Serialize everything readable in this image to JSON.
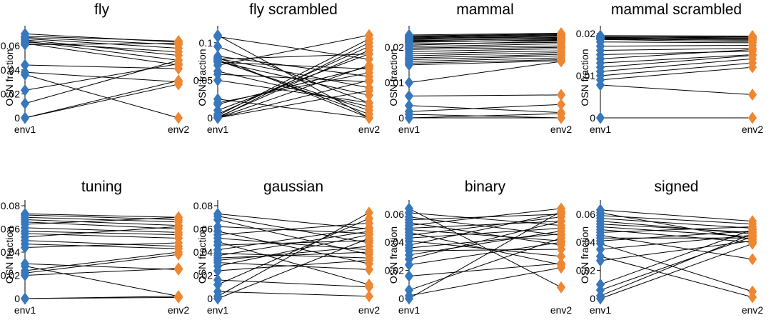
{
  "colors": {
    "env1": "#3677BD",
    "env2": "#EE8732",
    "line": "#000000",
    "axis": "#000000"
  },
  "chart_data": [
    {
      "type": "line",
      "title": "fly",
      "ylabel": "OSN fraction",
      "categories": [
        "env1",
        "env2"
      ],
      "ylim": [
        0,
        0.072
      ],
      "yticks": [
        0,
        0.02,
        0.04,
        0.06
      ],
      "ytick_labels": [
        "0",
        "0.02",
        "0.04",
        "0.06"
      ],
      "series": [
        {
          "values": [
            0.07,
            0.063
          ]
        },
        {
          "values": [
            0.068,
            0.064
          ]
        },
        {
          "values": [
            0.067,
            0.061
          ]
        },
        {
          "values": [
            0.066,
            0.058
          ]
        },
        {
          "values": [
            0.065,
            0.052
          ]
        },
        {
          "values": [
            0.064,
            0.048
          ]
        },
        {
          "values": [
            0.063,
            0.055
          ]
        },
        {
          "values": [
            0.062,
            0.044
          ]
        },
        {
          "values": [
            0.061,
            0.062
          ]
        },
        {
          "values": [
            0.044,
            0.041
          ]
        },
        {
          "values": [
            0.038,
            0.03
          ]
        },
        {
          "values": [
            0.036,
            0.0
          ]
        },
        {
          "values": [
            0.023,
            0.045
          ]
        },
        {
          "values": [
            0.012,
            0.048
          ]
        },
        {
          "values": [
            0.0,
            0.028
          ]
        },
        {
          "values": [
            0.0,
            0.031
          ]
        }
      ]
    },
    {
      "type": "line",
      "title": "fly scrambled",
      "ylabel": "OSN fraction",
      "categories": [
        "env1",
        "env2"
      ],
      "ylim": [
        0,
        0.115
      ],
      "yticks": [
        0,
        0.05,
        0.1
      ],
      "ytick_labels": [
        "0",
        "0.05",
        "0.1"
      ],
      "series": [
        {
          "values": [
            0.11,
            0.0
          ]
        },
        {
          "values": [
            0.108,
            0.078
          ]
        },
        {
          "values": [
            0.095,
            0.02
          ]
        },
        {
          "values": [
            0.082,
            0.055
          ]
        },
        {
          "values": [
            0.08,
            0.0
          ]
        },
        {
          "values": [
            0.079,
            0.04
          ]
        },
        {
          "values": [
            0.078,
            0.085
          ]
        },
        {
          "values": [
            0.077,
            0.005
          ]
        },
        {
          "values": [
            0.076,
            0.01
          ]
        },
        {
          "values": [
            0.075,
            0.03
          ]
        },
        {
          "values": [
            0.074,
            0.065
          ]
        },
        {
          "values": [
            0.07,
            0.11
          ]
        },
        {
          "values": [
            0.062,
            0.015
          ]
        },
        {
          "values": [
            0.058,
            0.048
          ]
        },
        {
          "values": [
            0.05,
            0.02
          ]
        },
        {
          "values": [
            0.025,
            0.0
          ]
        },
        {
          "values": [
            0.02,
            0.06
          ]
        },
        {
          "values": [
            0.018,
            0.068
          ]
        },
        {
          "values": [
            0.01,
            0.085
          ]
        },
        {
          "values": [
            0.005,
            0.095
          ]
        },
        {
          "values": [
            0.003,
            0.105
          ]
        },
        {
          "values": [
            0.001,
            0.09
          ]
        },
        {
          "values": [
            0.0,
            0.1
          ]
        },
        {
          "values": [
            0.0,
            0.07
          ]
        },
        {
          "values": [
            0.0,
            0.05
          ]
        },
        {
          "values": [
            0.0,
            0.036
          ]
        }
      ]
    },
    {
      "type": "line",
      "title": "mammal",
      "ylabel": "OSN fraction",
      "categories": [
        "env1",
        "env2"
      ],
      "ylim": [
        0,
        0.0245
      ],
      "yticks": [
        0,
        0.01,
        0.02
      ],
      "ytick_labels": [
        "0",
        "0.01",
        "0.02"
      ],
      "series": [
        {
          "values": [
            0.0235,
            0.024
          ]
        },
        {
          "values": [
            0.0232,
            0.0238
          ]
        },
        {
          "values": [
            0.023,
            0.0236
          ]
        },
        {
          "values": [
            0.0228,
            0.0234
          ]
        },
        {
          "values": [
            0.0226,
            0.0231
          ]
        },
        {
          "values": [
            0.0224,
            0.0228
          ]
        },
        {
          "values": [
            0.0222,
            0.0232
          ]
        },
        {
          "values": [
            0.022,
            0.0224
          ]
        },
        {
          "values": [
            0.0218,
            0.0226
          ]
        },
        {
          "values": [
            0.0216,
            0.022
          ]
        },
        {
          "values": [
            0.0214,
            0.0222
          ]
        },
        {
          "values": [
            0.021,
            0.0214
          ]
        },
        {
          "values": [
            0.0206,
            0.0218
          ]
        },
        {
          "values": [
            0.0202,
            0.021
          ]
        },
        {
          "values": [
            0.0198,
            0.0204
          ]
        },
        {
          "values": [
            0.0194,
            0.02
          ]
        },
        {
          "values": [
            0.0188,
            0.0196
          ]
        },
        {
          "values": [
            0.0182,
            0.019
          ]
        },
        {
          "values": [
            0.0176,
            0.0185
          ]
        },
        {
          "values": [
            0.017,
            0.018
          ]
        },
        {
          "values": [
            0.0165,
            0.0176
          ]
        },
        {
          "values": [
            0.016,
            0.017
          ]
        },
        {
          "values": [
            0.0155,
            0.0165
          ]
        },
        {
          "values": [
            0.015,
            0.0162
          ]
        },
        {
          "values": [
            0.01,
            0.016
          ]
        },
        {
          "values": [
            0.0062,
            0.0065
          ]
        },
        {
          "values": [
            0.0035,
            0.0015
          ]
        },
        {
          "values": [
            0.0018,
            0.0038
          ]
        },
        {
          "values": [
            0.001,
            0.0
          ]
        },
        {
          "values": [
            0.0,
            0.0
          ]
        },
        {
          "values": [
            0.0,
            0.0012
          ]
        }
      ]
    },
    {
      "type": "line",
      "title": "mammal scrambled",
      "ylabel": "OSN fraction",
      "categories": [
        "env1",
        "env2"
      ],
      "ylim": [
        0,
        0.0205
      ],
      "yticks": [
        0,
        0.01,
        0.02
      ],
      "ytick_labels": [
        "0",
        "0.01",
        "0.02"
      ],
      "series": [
        {
          "values": [
            0.0195,
            0.0194
          ]
        },
        {
          "values": [
            0.0193,
            0.0192
          ]
        },
        {
          "values": [
            0.0191,
            0.0188
          ]
        },
        {
          "values": [
            0.019,
            0.019
          ]
        },
        {
          "values": [
            0.0189,
            0.0186
          ]
        },
        {
          "values": [
            0.0188,
            0.0193
          ]
        },
        {
          "values": [
            0.0187,
            0.0184
          ]
        },
        {
          "values": [
            0.0186,
            0.018
          ]
        },
        {
          "values": [
            0.018,
            0.0178
          ]
        },
        {
          "values": [
            0.017,
            0.0172
          ]
        },
        {
          "values": [
            0.016,
            0.0165
          ]
        },
        {
          "values": [
            0.015,
            0.0158
          ]
        },
        {
          "values": [
            0.014,
            0.0162
          ]
        },
        {
          "values": [
            0.013,
            0.015
          ]
        },
        {
          "values": [
            0.012,
            0.0148
          ]
        },
        {
          "values": [
            0.011,
            0.014
          ]
        },
        {
          "values": [
            0.01,
            0.013
          ]
        },
        {
          "values": [
            0.009,
            0.012
          ]
        },
        {
          "values": [
            0.0078,
            0.0055
          ]
        },
        {
          "values": [
            0.0,
            0.0
          ]
        }
      ]
    },
    {
      "type": "line",
      "title": "tuning",
      "ylabel": "OSN fraction",
      "categories": [
        "env1",
        "env2"
      ],
      "ylim": [
        0,
        0.08
      ],
      "yticks": [
        0,
        0.02,
        0.04,
        0.06,
        0.08
      ],
      "ytick_labels": [
        "0",
        "0.02",
        "0.04",
        "0.06",
        "0.08"
      ],
      "series": [
        {
          "values": [
            0.073,
            0.07
          ]
        },
        {
          "values": [
            0.072,
            0.068
          ]
        },
        {
          "values": [
            0.07,
            0.066
          ]
        },
        {
          "values": [
            0.068,
            0.063
          ]
        },
        {
          "values": [
            0.066,
            0.06
          ]
        },
        {
          "values": [
            0.064,
            0.07
          ]
        },
        {
          "values": [
            0.061,
            0.057
          ]
        },
        {
          "values": [
            0.058,
            0.055
          ]
        },
        {
          "values": [
            0.056,
            0.052
          ]
        },
        {
          "values": [
            0.053,
            0.062
          ]
        },
        {
          "values": [
            0.05,
            0.045
          ]
        },
        {
          "values": [
            0.047,
            0.043
          ]
        },
        {
          "values": [
            0.044,
            0.048
          ]
        },
        {
          "values": [
            0.03,
            0.025
          ]
        },
        {
          "values": [
            0.028,
            0.002
          ]
        },
        {
          "values": [
            0.024,
            0.04
          ]
        },
        {
          "values": [
            0.022,
            0.038
          ]
        },
        {
          "values": [
            0.02,
            0.026
          ]
        },
        {
          "values": [
            0.0,
            0.001
          ]
        },
        {
          "values": [
            0.0,
            0.002
          ]
        }
      ]
    },
    {
      "type": "line",
      "title": "gaussian",
      "ylabel": "OSN fraction",
      "categories": [
        "env1",
        "env2"
      ],
      "ylim": [
        0,
        0.08
      ],
      "yticks": [
        0,
        0.02,
        0.04,
        0.06,
        0.08
      ],
      "ytick_labels": [
        "0",
        "0.02",
        "0.04",
        "0.06",
        "0.08"
      ],
      "series": [
        {
          "values": [
            0.073,
            0.06
          ]
        },
        {
          "values": [
            0.071,
            0.048
          ]
        },
        {
          "values": [
            0.068,
            0.038
          ]
        },
        {
          "values": [
            0.062,
            0.056
          ]
        },
        {
          "values": [
            0.058,
            0.03
          ]
        },
        {
          "values": [
            0.055,
            0.065
          ]
        },
        {
          "values": [
            0.052,
            0.042
          ]
        },
        {
          "values": [
            0.049,
            0.012
          ]
        },
        {
          "values": [
            0.046,
            0.05
          ]
        },
        {
          "values": [
            0.042,
            0.061
          ]
        },
        {
          "values": [
            0.039,
            0.035
          ]
        },
        {
          "values": [
            0.037,
            0.058
          ]
        },
        {
          "values": [
            0.035,
            0.04
          ]
        },
        {
          "values": [
            0.033,
            0.045
          ]
        },
        {
          "values": [
            0.031,
            0.025
          ]
        },
        {
          "values": [
            0.028,
            0.055
          ]
        },
        {
          "values": [
            0.024,
            0.033
          ]
        },
        {
          "values": [
            0.016,
            0.01
          ]
        },
        {
          "values": [
            0.012,
            0.069
          ]
        },
        {
          "values": [
            0.006,
            0.002
          ]
        },
        {
          "values": [
            0.002,
            0.074
          ]
        },
        {
          "values": [
            0.0,
            0.052
          ]
        }
      ]
    },
    {
      "type": "line",
      "title": "binary",
      "ylabel": "OSN fraction",
      "categories": [
        "env1",
        "env2"
      ],
      "ylim": [
        0,
        0.066
      ],
      "yticks": [
        0,
        0.02,
        0.04,
        0.06
      ],
      "ytick_labels": [
        "0",
        "0.02",
        "0.04",
        "0.06"
      ],
      "series": [
        {
          "values": [
            0.064,
            0.008
          ]
        },
        {
          "values": [
            0.061,
            0.052
          ]
        },
        {
          "values": [
            0.058,
            0.045
          ]
        },
        {
          "values": [
            0.056,
            0.06
          ]
        },
        {
          "values": [
            0.054,
            0.038
          ]
        },
        {
          "values": [
            0.052,
            0.064
          ]
        },
        {
          "values": [
            0.05,
            0.055
          ]
        },
        {
          "values": [
            0.049,
            0.041
          ]
        },
        {
          "values": [
            0.047,
            0.024
          ]
        },
        {
          "values": [
            0.045,
            0.058
          ]
        },
        {
          "values": [
            0.043,
            0.05
          ]
        },
        {
          "values": [
            0.041,
            0.03
          ]
        },
        {
          "values": [
            0.038,
            0.061
          ]
        },
        {
          "values": [
            0.036,
            0.046
          ]
        },
        {
          "values": [
            0.034,
            0.035
          ]
        },
        {
          "values": [
            0.031,
            0.048
          ]
        },
        {
          "values": [
            0.028,
            0.055
          ]
        },
        {
          "values": [
            0.024,
            0.04
          ]
        },
        {
          "values": [
            0.016,
            0.025
          ]
        },
        {
          "values": [
            0.006,
            0.043
          ]
        },
        {
          "values": [
            0.002,
            0.022
          ]
        },
        {
          "values": [
            0.0,
            0.062
          ]
        }
      ]
    },
    {
      "type": "line",
      "title": "signed",
      "ylabel": "OSN fraction",
      "categories": [
        "env1",
        "env2"
      ],
      "ylim": [
        0,
        0.066
      ],
      "yticks": [
        0,
        0.02,
        0.04,
        0.06
      ],
      "ytick_labels": [
        "0",
        "0.02",
        "0.04",
        "0.06"
      ],
      "series": [
        {
          "values": [
            0.063,
            0.055
          ]
        },
        {
          "values": [
            0.061,
            0.042
          ]
        },
        {
          "values": [
            0.059,
            0.053
          ]
        },
        {
          "values": [
            0.057,
            0.05
          ]
        },
        {
          "values": [
            0.055,
            0.046
          ]
        },
        {
          "values": [
            0.053,
            0.047
          ]
        },
        {
          "values": [
            0.051,
            0.044
          ]
        },
        {
          "values": [
            0.049,
            0.04
          ]
        },
        {
          "values": [
            0.047,
            0.051
          ]
        },
        {
          "values": [
            0.045,
            0.028
          ]
        },
        {
          "values": [
            0.043,
            0.043
          ]
        },
        {
          "values": [
            0.041,
            0.048
          ]
        },
        {
          "values": [
            0.039,
            0.005
          ]
        },
        {
          "values": [
            0.035,
            0.045
          ]
        },
        {
          "values": [
            0.03,
            0.001
          ]
        },
        {
          "values": [
            0.027,
            0.041
          ]
        },
        {
          "values": [
            0.01,
            0.049
          ]
        },
        {
          "values": [
            0.006,
            0.044
          ]
        },
        {
          "values": [
            0.002,
            0.046
          ]
        },
        {
          "values": [
            0.0,
            0.039
          ]
        }
      ]
    }
  ]
}
